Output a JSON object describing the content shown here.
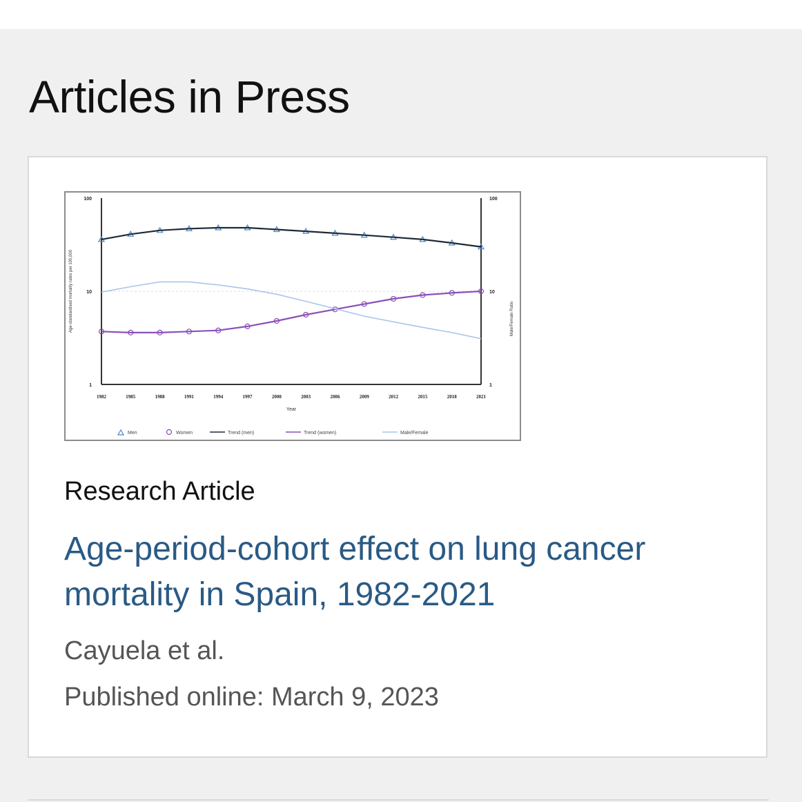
{
  "section": {
    "title": "Articles in Press"
  },
  "article": {
    "type": "Research Article",
    "title": "Age-period-cohort effect on lung cancer mortality in Spain, 1982-2021",
    "authors": "Cayuela et al.",
    "published": "Published online: March 9, 2023"
  },
  "colors": {
    "title_link": "#2a5a85",
    "men": "#4a86c5",
    "women": "#8a4fb8",
    "trend_men": "#1f2a36",
    "ratio": "#a9c6ea"
  },
  "chart_data": {
    "type": "line",
    "scale": "log",
    "ylim": [
      1,
      100
    ],
    "y2lim": [
      1,
      100
    ],
    "ytick_labels": [
      "100",
      "10",
      "1"
    ],
    "y2tick_labels": [
      "100",
      "10",
      "1"
    ],
    "ylabel": "Age-standardised mortality rates per 100,000",
    "y2label": "Male/Female Ratio",
    "xlabel": "Year",
    "xlim": [
      1982,
      2021
    ],
    "xtick_labels": [
      "1982",
      "1985",
      "1988",
      "1991",
      "1994",
      "1997",
      "2000",
      "2003",
      "2006",
      "2009",
      "2012",
      "2015",
      "2018",
      "2021"
    ],
    "x": [
      1982,
      1985,
      1988,
      1991,
      1994,
      1997,
      2000,
      2003,
      2006,
      2009,
      2012,
      2015,
      2018,
      2021
    ],
    "series": [
      {
        "name": "Men",
        "marker": "triangle",
        "values": [
          36,
          41,
          45,
          47,
          48,
          48,
          46,
          44,
          42,
          40,
          38,
          36,
          33,
          30
        ]
      },
      {
        "name": "Women",
        "marker": "circle",
        "values": [
          3.7,
          3.6,
          3.6,
          3.7,
          3.8,
          4.2,
          4.8,
          5.6,
          6.4,
          7.3,
          8.3,
          9.1,
          9.6,
          10
        ]
      },
      {
        "name": "Trend (men)",
        "style": "line",
        "values": [
          36,
          41,
          45,
          47,
          48,
          48,
          46,
          44,
          42,
          40,
          38,
          36,
          33,
          30
        ]
      },
      {
        "name": "Trend (women)",
        "style": "line",
        "values": [
          3.7,
          3.6,
          3.6,
          3.7,
          3.8,
          4.2,
          4.8,
          5.6,
          6.4,
          7.3,
          8.3,
          9.1,
          9.6,
          10
        ]
      },
      {
        "name": "Male/Female",
        "axis": "right",
        "values": [
          9.8,
          11.2,
          12.6,
          12.6,
          11.7,
          10.6,
          9.3,
          7.8,
          6.5,
          5.4,
          4.7,
          4.1,
          3.6,
          3.1
        ]
      }
    ],
    "legend": [
      "Men",
      "Women",
      "Trend (men)",
      "Trend (women)",
      "Male/Female"
    ],
    "legend_position": "bottom",
    "grid": true
  }
}
